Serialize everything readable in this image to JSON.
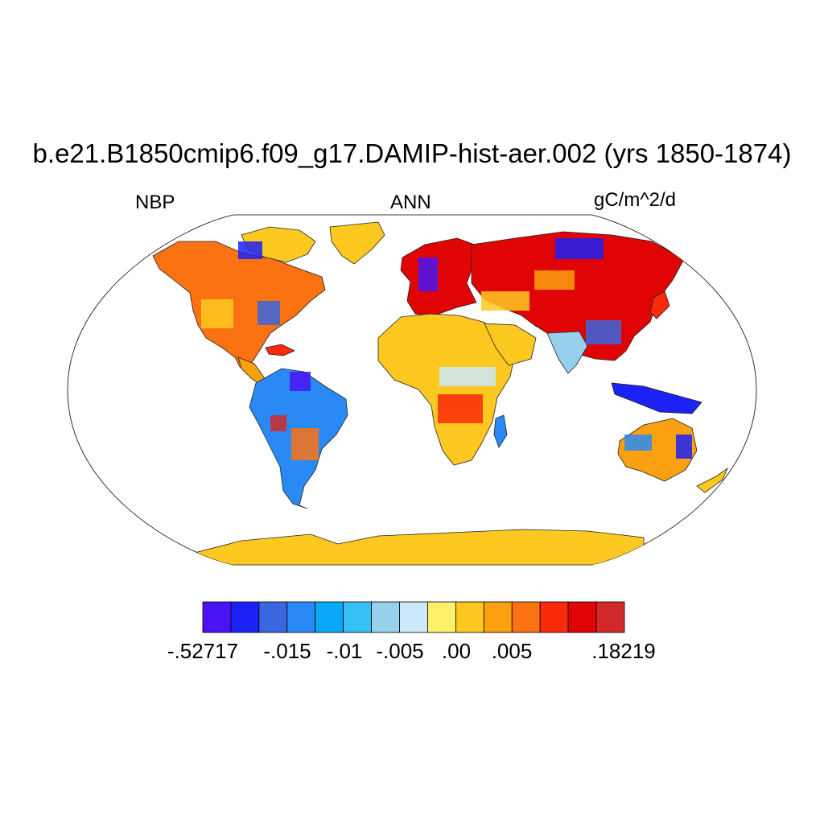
{
  "title": "b.e21.B1850cmip6.f09_g17.DAMIP-hist-aer.002 (yrs 1850-1874)",
  "left_string": "NBP",
  "center_string": "ANN",
  "right_string": "gC/m^2/d",
  "projection": "Robinson",
  "colorbar": {
    "colors": [
      "#4a14f5",
      "#1c22f5",
      "#3a66e0",
      "#2a8af5",
      "#0aa8f8",
      "#36c0f5",
      "#97d0ec",
      "#cce8f9",
      "#fff06a",
      "#fdc920",
      "#fba010",
      "#fa7212",
      "#fa2a0a",
      "#e00404",
      "#d22a2a"
    ],
    "tick_labels": [
      ".18219",
      ".005",
      ".00",
      "-.005",
      "-.01",
      "-.015",
      "-.52717"
    ]
  }
}
